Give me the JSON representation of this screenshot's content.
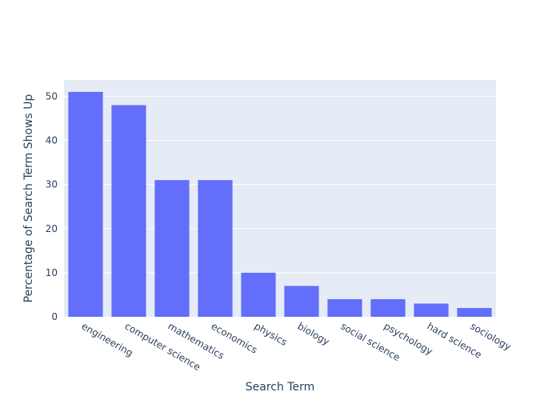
{
  "chart_data": {
    "type": "bar",
    "title": "",
    "xlabel": "Search Term",
    "ylabel": "Percentage of Search Term Shows Up",
    "categories": [
      "engineering",
      "computer science",
      "mathematics",
      "economics",
      "physics",
      "biology",
      "social science",
      "psychology",
      "hard science",
      "sociology"
    ],
    "values": [
      51,
      48,
      31,
      31,
      10,
      7,
      4,
      4,
      3,
      2
    ],
    "ylim": [
      0,
      53.7
    ],
    "yticks": [
      0,
      10,
      20,
      30,
      40,
      50
    ],
    "grid": true,
    "legend": "none",
    "colors": {
      "bar": "#636efa",
      "plot_bg": "#e5ecf6",
      "grid": "#ffffff",
      "text": "#2a3f5f"
    }
  }
}
